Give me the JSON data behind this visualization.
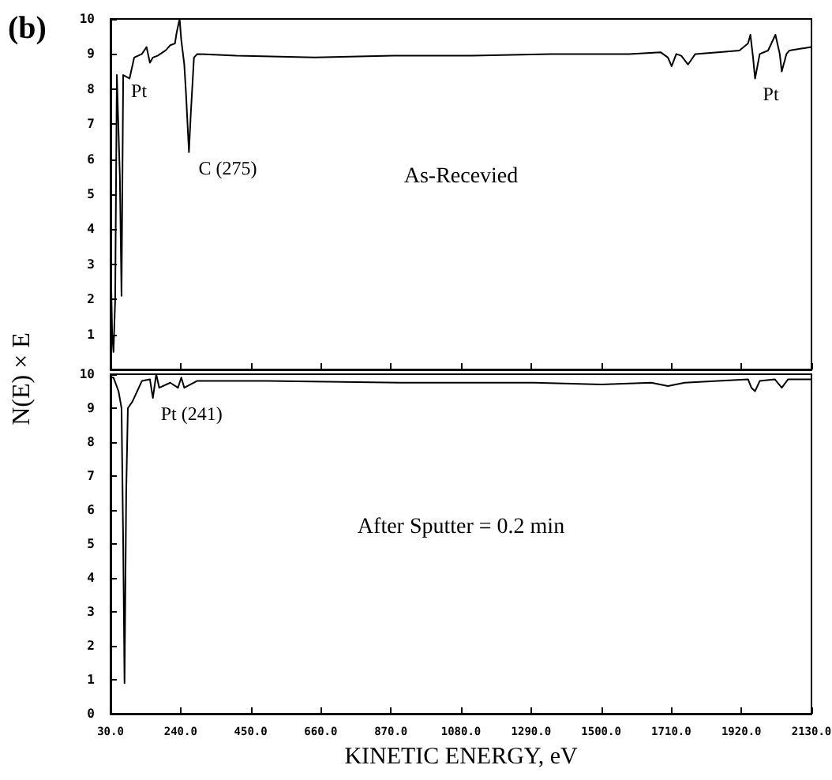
{
  "chart_data": [
    {
      "type": "line",
      "title": "(b)",
      "ylabel": "N(E) × E",
      "annotations": [
        {
          "text": "Pt",
          "x": 68,
          "y": 8.4
        },
        {
          "text": "C (275)",
          "x": 270,
          "y": 6.2
        },
        {
          "text": "Pt",
          "x": 1961,
          "y": 8.3
        },
        "As-Recevied"
      ],
      "x": [
        30,
        35,
        39,
        44,
        49,
        58,
        63,
        68,
        87,
        101,
        124,
        138,
        148,
        157,
        171,
        195,
        209,
        223,
        228,
        237,
        242,
        251,
        256,
        265,
        270,
        280,
        290,
        407,
        642,
        878,
        1113,
        1349,
        1584,
        1678,
        1700,
        1711,
        1725,
        1740,
        1760,
        1782,
        1850,
        1914,
        1940,
        1947,
        1955,
        1961,
        1975,
        2000,
        2022,
        2035,
        2041,
        2055,
        2064,
        2130
      ],
      "series": [
        {
          "color": "#000000",
          "values": [
            3.4,
            1.0,
            0.5,
            2.0,
            8.4,
            5.5,
            2.1,
            8.4,
            8.3,
            8.9,
            9.0,
            9.2,
            8.75,
            8.9,
            8.95,
            9.1,
            9.25,
            9.3,
            9.6,
            10.0,
            9.4,
            8.7,
            7.9,
            6.2,
            7.2,
            8.9,
            9.0,
            8.95,
            8.9,
            8.95,
            8.95,
            9.0,
            9.0,
            9.05,
            8.9,
            8.65,
            9.0,
            8.95,
            8.7,
            9.0,
            9.05,
            9.1,
            9.3,
            9.55,
            8.9,
            8.3,
            9.0,
            9.1,
            9.55,
            9.0,
            8.5,
            9.0,
            9.1,
            9.2
          ]
        }
      ],
      "xlim": [
        30,
        2130
      ],
      "xticks": [
        30,
        240,
        450,
        660,
        870,
        1080,
        1290,
        1500,
        1710,
        1920,
        2130
      ],
      "ylim": [
        0,
        10
      ],
      "yticks": [
        {
          "value": 0,
          "label": null
        },
        1,
        2,
        3,
        4,
        5,
        6,
        7,
        8,
        9,
        10
      ],
      "tick_labels": "y"
    },
    {
      "type": "line",
      "xlabel": "KINETIC ENERGY, eV",
      "annotations": [
        {
          "text": "Pt (241)",
          "x": 157,
          "y": 9.3
        },
        "After Sputter = 0.2 min"
      ],
      "x": [
        30,
        39,
        54,
        63,
        68,
        72,
        77,
        82,
        96,
        124,
        148,
        157,
        167,
        176,
        209,
        232,
        242,
        251,
        289,
        500,
        900,
        1300,
        1500,
        1650,
        1700,
        1750,
        1850,
        1940,
        1950,
        1961,
        1975,
        2020,
        2041,
        2060,
        2130
      ],
      "series": [
        {
          "color": "#000000",
          "values": [
            9.9,
            9.9,
            9.5,
            9.0,
            5.0,
            0.9,
            6.5,
            9.0,
            9.2,
            9.8,
            9.85,
            9.3,
            10.0,
            9.6,
            9.75,
            9.6,
            9.9,
            9.6,
            9.8,
            9.8,
            9.75,
            9.75,
            9.7,
            9.75,
            9.65,
            9.75,
            9.8,
            9.85,
            9.6,
            9.5,
            9.8,
            9.85,
            9.6,
            9.85,
            9.85
          ]
        }
      ],
      "xlim": [
        30,
        2130
      ],
      "xticks": [
        {
          "value": 30,
          "label": "30.0"
        },
        {
          "value": 240,
          "label": "240.0"
        },
        {
          "value": 450,
          "label": "450.0"
        },
        {
          "value": 660,
          "label": "660.0"
        },
        {
          "value": 870,
          "label": "870.0"
        },
        {
          "value": 1080,
          "label": "1080.0"
        },
        {
          "value": 1290,
          "label": "1290.0"
        },
        {
          "value": 1500,
          "label": "1500.0"
        },
        {
          "value": 1710,
          "label": "1710.0"
        },
        {
          "value": 1920,
          "label": "1920.0"
        },
        {
          "value": 2130,
          "label": "2130.0"
        }
      ],
      "ylim": [
        0,
        10
      ],
      "yticks": [
        0,
        1,
        2,
        3,
        4,
        5,
        6,
        7,
        8,
        9,
        10
      ]
    }
  ]
}
